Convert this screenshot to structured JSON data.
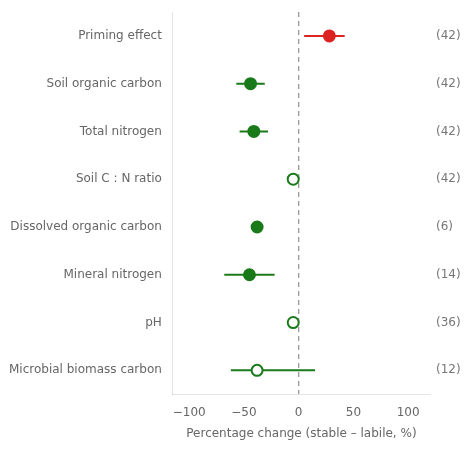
{
  "chart_data": {
    "type": "forest",
    "categories": [
      "Priming effect",
      "Soil organic carbon",
      "Total nitrogen",
      "Soil C : N ratio",
      "Dissolved organic carbon",
      "Mineral nitrogen",
      "pH",
      "Microbial biomass carbon"
    ],
    "values": [
      28,
      -44,
      -41,
      -5,
      -38,
      -45,
      -5,
      -38
    ],
    "lower": [
      5,
      -57,
      -54,
      -5,
      -38,
      -68,
      -5,
      -62
    ],
    "upper": [
      42,
      -31,
      -28,
      -5,
      -38,
      -22,
      -5,
      15
    ],
    "colors": [
      "#d22",
      "#1a7a1a",
      "#1a7a1a",
      "#1a7a1a",
      "#1a7a1a",
      "#1a7a1a",
      "#1a7a1a",
      "#1a7a1a"
    ],
    "markers": [
      "filled",
      "filled",
      "filled",
      "open",
      "filled",
      "filled",
      "open",
      "open"
    ],
    "annotations": [
      "(42)",
      "(42)",
      "(42)",
      "(42)",
      "(6)",
      "(14)",
      "(36)",
      "(12)"
    ],
    "xlabel": "Percentage change (stable – labile, %)",
    "xlim": [
      -115,
      120
    ],
    "xticks": [
      {
        "value": -100,
        "label": "−100"
      },
      {
        "value": -50,
        "label": "−50"
      },
      0,
      50,
      100
    ],
    "vline": 0,
    "grid": false
  }
}
